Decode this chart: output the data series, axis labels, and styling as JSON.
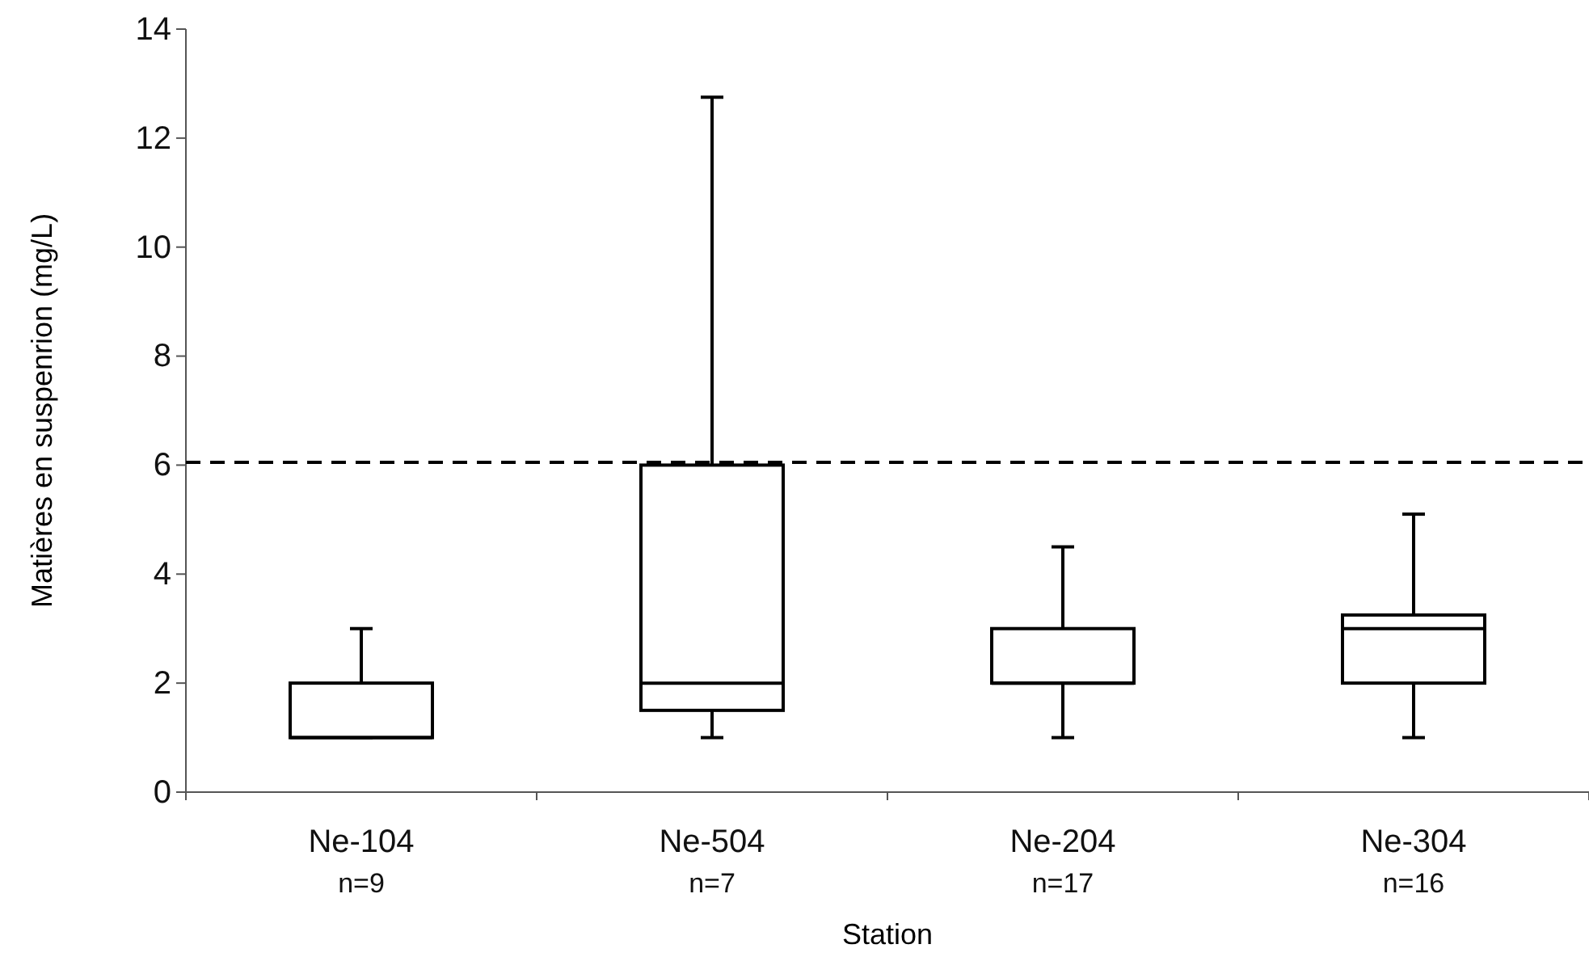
{
  "chart_data": {
    "type": "box",
    "xlabel": "Station",
    "ylabel": "Matières en suspenrion (mg/L)",
    "categories": [
      "Ne-104\nn=9",
      "Ne-504\nn=7",
      "Ne-204\nn=17",
      "Ne-304\nn=16"
    ],
    "boxes": [
      {
        "low": 1,
        "q1": 1,
        "median": 1,
        "q3": 2,
        "high": 3
      },
      {
        "low": 1,
        "q1": 1.5,
        "median": 2,
        "q3": 6,
        "high": 12.75
      },
      {
        "low": 1,
        "q1": 2,
        "median": 2,
        "q3": 3,
        "high": 4.5
      },
      {
        "low": 1,
        "q1": 2,
        "median": 3,
        "q3": 3.25,
        "high": 5.1
      }
    ],
    "ylim": [
      0,
      14
    ],
    "yticks": [
      0,
      2,
      4,
      6,
      8,
      10,
      12,
      14
    ],
    "ref_lines": [
      {
        "axis": "y",
        "value": 6.05,
        "line_style": "dashed",
        "color": "#000000"
      }
    ],
    "grid": false
  }
}
